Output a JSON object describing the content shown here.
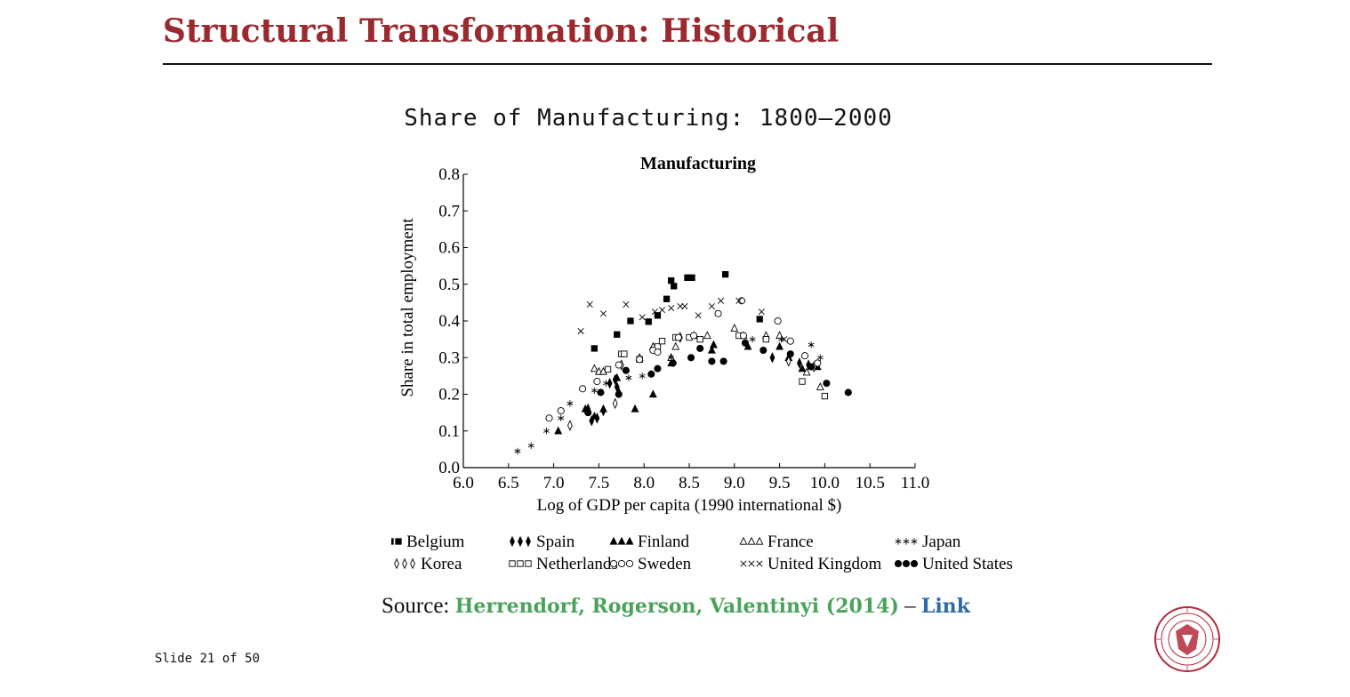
{
  "slide": {
    "title": "Structural Transformation: Historical",
    "subtitle": "Share of Manufacturing:  1800–2000",
    "footer": "Slide 21 of 50",
    "source_label": "Source:",
    "citation": "Herrendorf, Rogerson, Valentinyi (2014)",
    "dash": "–",
    "link_label": "Link",
    "colors": {
      "title": "#9b2a2f",
      "citation": "#4aa35a",
      "link": "#2f6aa8",
      "seal": "#b5293a"
    }
  },
  "chart_data": {
    "type": "scatter",
    "title": "Manufacturing",
    "xlabel": "Log of GDP per capita (1990 international $)",
    "ylabel": "Share in total employment",
    "xlim": [
      6.0,
      11.0
    ],
    "ylim": [
      0.0,
      0.8
    ],
    "xticks": [
      "6.0",
      "6.5",
      "7.0",
      "7.5",
      "8.0",
      "8.5",
      "9.0",
      "9.5",
      "10.0",
      "10.5",
      "11.0"
    ],
    "yticks": [
      "0.0",
      "0.1",
      "0.2",
      "0.3",
      "0.4",
      "0.5",
      "0.6",
      "0.7",
      "0.8"
    ],
    "grid": false,
    "legend_position": "bottom",
    "series": [
      {
        "name": "Belgium",
        "marker": "square-filled",
        "symbol": "■■■",
        "points": [
          [
            7.45,
            0.325
          ],
          [
            7.7,
            0.363
          ],
          [
            7.85,
            0.4
          ],
          [
            8.05,
            0.398
          ],
          [
            8.15,
            0.415
          ],
          [
            8.25,
            0.46
          ],
          [
            8.3,
            0.51
          ],
          [
            8.33,
            0.495
          ],
          [
            8.48,
            0.518
          ],
          [
            8.53,
            0.518
          ],
          [
            8.9,
            0.527
          ],
          [
            9.28,
            0.405
          ]
        ]
      },
      {
        "name": "Spain",
        "marker": "diamond-filled",
        "symbol": "♦♦♦",
        "points": [
          [
            7.38,
            0.16
          ],
          [
            7.42,
            0.128
          ],
          [
            7.48,
            0.135
          ],
          [
            7.55,
            0.155
          ],
          [
            7.62,
            0.23
          ],
          [
            7.68,
            0.24
          ],
          [
            7.7,
            0.22
          ],
          [
            7.72,
            0.205
          ],
          [
            8.4,
            0.355
          ],
          [
            9.42,
            0.3
          ],
          [
            9.72,
            0.285
          ],
          [
            9.82,
            0.28
          ]
        ]
      },
      {
        "name": "Finland",
        "marker": "triangle-filled",
        "symbol": "▲▲▲",
        "points": [
          [
            7.05,
            0.1
          ],
          [
            7.35,
            0.16
          ],
          [
            7.45,
            0.14
          ],
          [
            7.55,
            0.16
          ],
          [
            7.7,
            0.245
          ],
          [
            7.9,
            0.16
          ],
          [
            8.1,
            0.2
          ],
          [
            8.3,
            0.285
          ],
          [
            8.75,
            0.32
          ],
          [
            8.77,
            0.335
          ],
          [
            9.15,
            0.33
          ],
          [
            9.5,
            0.33
          ],
          [
            9.6,
            0.3
          ],
          [
            9.75,
            0.27
          ],
          [
            9.92,
            0.275
          ]
        ]
      },
      {
        "name": "France",
        "marker": "triangle-open",
        "symbol": "△△△",
        "points": [
          [
            7.45,
            0.27
          ],
          [
            7.5,
            0.262
          ],
          [
            7.55,
            0.262
          ],
          [
            7.95,
            0.3
          ],
          [
            8.1,
            0.33
          ],
          [
            8.3,
            0.3
          ],
          [
            8.35,
            0.33
          ],
          [
            8.55,
            0.36
          ],
          [
            8.7,
            0.36
          ],
          [
            9.0,
            0.38
          ],
          [
            9.1,
            0.36
          ],
          [
            9.35,
            0.36
          ],
          [
            9.5,
            0.36
          ],
          [
            9.8,
            0.26
          ],
          [
            9.95,
            0.22
          ]
        ]
      },
      {
        "name": "Japan",
        "marker": "asterisk",
        "symbol": "∗∗∗",
        "points": [
          [
            6.6,
            0.045
          ],
          [
            6.75,
            0.06
          ],
          [
            6.92,
            0.1
          ],
          [
            7.08,
            0.135
          ],
          [
            7.18,
            0.175
          ],
          [
            7.45,
            0.21
          ],
          [
            7.58,
            0.23
          ],
          [
            7.83,
            0.245
          ],
          [
            7.98,
            0.25
          ],
          [
            8.3,
            0.3
          ],
          [
            9.2,
            0.35
          ],
          [
            9.52,
            0.35
          ],
          [
            9.85,
            0.335
          ],
          [
            9.95,
            0.3
          ]
        ]
      },
      {
        "name": "Korea",
        "marker": "diamond-open",
        "symbol": "◊◊◊",
        "points": [
          [
            7.18,
            0.115
          ],
          [
            7.68,
            0.175
          ],
          [
            7.75,
            0.28
          ],
          [
            9.6,
            0.29
          ],
          [
            9.88,
            0.275
          ]
        ]
      },
      {
        "name": "Netherlands",
        "marker": "square-open",
        "symbol": "□□□",
        "points": [
          [
            7.6,
            0.268
          ],
          [
            7.75,
            0.31
          ],
          [
            7.78,
            0.31
          ],
          [
            7.95,
            0.295
          ],
          [
            8.15,
            0.33
          ],
          [
            8.2,
            0.345
          ],
          [
            8.35,
            0.355
          ],
          [
            8.5,
            0.355
          ],
          [
            8.62,
            0.35
          ],
          [
            9.05,
            0.36
          ],
          [
            9.35,
            0.35
          ],
          [
            9.75,
            0.235
          ],
          [
            10.0,
            0.195
          ]
        ]
      },
      {
        "name": "Sweden",
        "marker": "circle-open",
        "symbol": "○○○",
        "points": [
          [
            6.95,
            0.135
          ],
          [
            7.08,
            0.155
          ],
          [
            7.32,
            0.215
          ],
          [
            7.48,
            0.235
          ],
          [
            7.72,
            0.28
          ],
          [
            7.95,
            0.295
          ],
          [
            8.1,
            0.32
          ],
          [
            8.15,
            0.315
          ],
          [
            8.38,
            0.355
          ],
          [
            8.55,
            0.36
          ],
          [
            8.82,
            0.42
          ],
          [
            9.08,
            0.455
          ],
          [
            9.1,
            0.36
          ],
          [
            9.48,
            0.4
          ],
          [
            9.62,
            0.345
          ],
          [
            9.78,
            0.305
          ],
          [
            9.92,
            0.285
          ]
        ]
      },
      {
        "name": "United Kingdom",
        "marker": "cross",
        "symbol": "×××",
        "points": [
          [
            7.3,
            0.372
          ],
          [
            7.4,
            0.445
          ],
          [
            7.55,
            0.42
          ],
          [
            7.8,
            0.445
          ],
          [
            7.98,
            0.41
          ],
          [
            8.12,
            0.425
          ],
          [
            8.2,
            0.43
          ],
          [
            8.3,
            0.435
          ],
          [
            8.4,
            0.44
          ],
          [
            8.45,
            0.44
          ],
          [
            8.6,
            0.415
          ],
          [
            8.75,
            0.44
          ],
          [
            8.85,
            0.455
          ],
          [
            9.05,
            0.455
          ],
          [
            9.3,
            0.425
          ],
          [
            9.55,
            0.35
          ]
        ]
      },
      {
        "name": "United States",
        "marker": "circle-filled",
        "symbol": "●●●",
        "points": [
          [
            7.38,
            0.15
          ],
          [
            7.52,
            0.205
          ],
          [
            7.72,
            0.2
          ],
          [
            7.8,
            0.265
          ],
          [
            8.08,
            0.255
          ],
          [
            8.15,
            0.27
          ],
          [
            8.32,
            0.285
          ],
          [
            8.52,
            0.3
          ],
          [
            8.62,
            0.325
          ],
          [
            8.75,
            0.29
          ],
          [
            8.88,
            0.29
          ],
          [
            9.12,
            0.34
          ],
          [
            9.32,
            0.32
          ],
          [
            9.62,
            0.31
          ],
          [
            9.85,
            0.275
          ],
          [
            10.02,
            0.23
          ],
          [
            10.26,
            0.205
          ]
        ]
      }
    ]
  }
}
